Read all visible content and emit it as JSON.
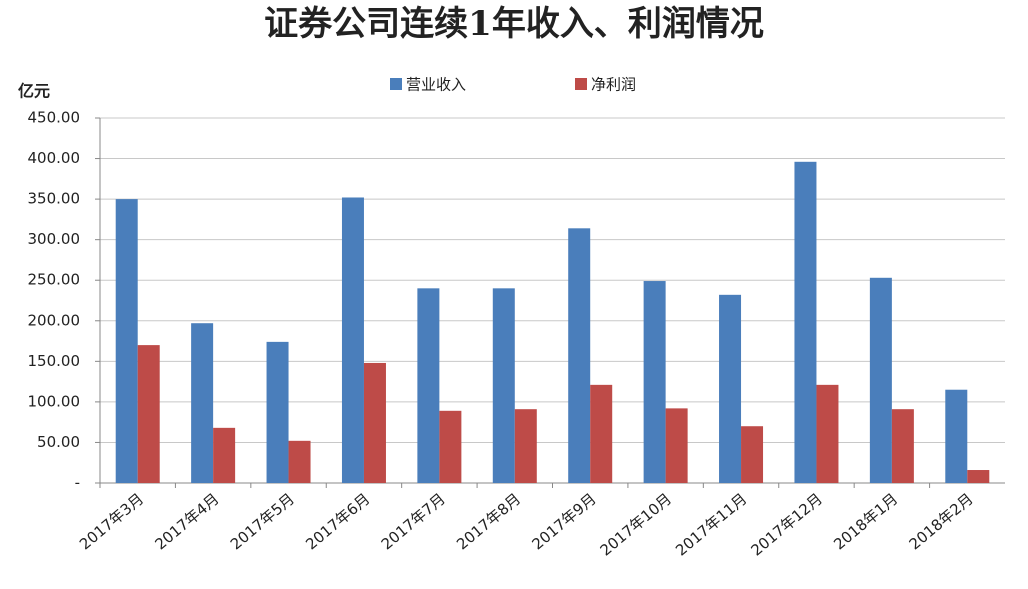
{
  "chart_data": {
    "type": "bar",
    "title": "证券公司连续1年收入、利润情况",
    "y_label": "亿元",
    "categories": [
      "2017年3月",
      "2017年4月",
      "2017年5月",
      "2017年6月",
      "2017年7月",
      "2017年8月",
      "2017年9月",
      "2017年10月",
      "2017年11月",
      "2017年12月",
      "2018年1月",
      "2018年2月"
    ],
    "series": [
      {
        "name": "营业收入",
        "color": "#4a7ebb",
        "values": [
          350,
          197,
          174,
          352,
          240,
          240,
          314,
          249,
          232,
          396,
          253,
          115
        ]
      },
      {
        "name": "净利润",
        "color": "#be4b48",
        "values": [
          170,
          68,
          52,
          148,
          89,
          91,
          121,
          92,
          70,
          121,
          91,
          16
        ]
      }
    ],
    "ylim": [
      0,
      450
    ],
    "yticks": [
      {
        "value": 0,
        "label": "-"
      },
      {
        "value": 50,
        "label": "50.00"
      },
      {
        "value": 100,
        "label": "100.00"
      },
      {
        "value": 150,
        "label": "150.00"
      },
      {
        "value": 200,
        "label": "200.00"
      },
      {
        "value": 250,
        "label": "250.00"
      },
      {
        "value": 300,
        "label": "300.00"
      },
      {
        "value": 350,
        "label": "350.00"
      },
      {
        "value": 400,
        "label": "400.00"
      },
      {
        "value": 450,
        "label": "450.00"
      }
    ],
    "grid": true,
    "legend": "top"
  }
}
